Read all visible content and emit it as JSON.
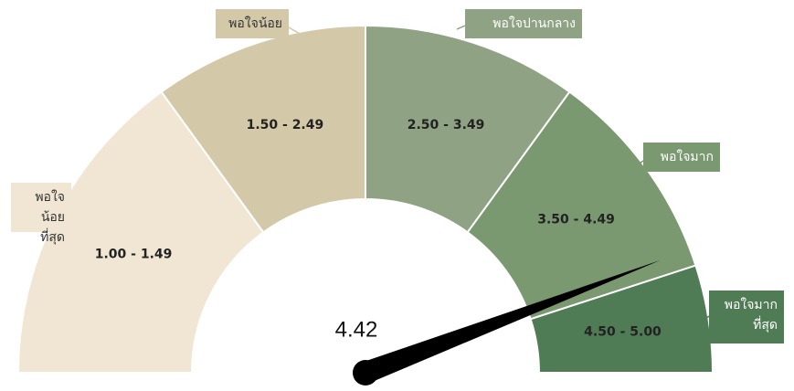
{
  "chart_data": {
    "type": "gauge",
    "range": [
      0,
      5
    ],
    "value": 4.42,
    "segments": [
      {
        "name": "พอใจน้อย\nที่สุด",
        "label": "1.00 - 1.49",
        "from": 0,
        "to": 1.5,
        "color": "#f1e6d3"
      },
      {
        "name": "พอใจน้อย",
        "label": "1.50 - 2.49",
        "from": 1.5,
        "to": 2.5,
        "color": "#d3c8a8"
      },
      {
        "name": "พอใจปานกลาง",
        "label": "2.50 - 3.49",
        "from": 2.5,
        "to": 3.5,
        "color": "#8fa283"
      },
      {
        "name": "พอใจมาก",
        "label": "3.50 - 4.49",
        "from": 3.5,
        "to": 4.5,
        "color": "#7a9970"
      },
      {
        "name": "พอใจมาก\nที่สุด",
        "label": "4.50 - 5.00",
        "from": 4.5,
        "to": 5,
        "color": "#4f7b55"
      }
    ]
  }
}
